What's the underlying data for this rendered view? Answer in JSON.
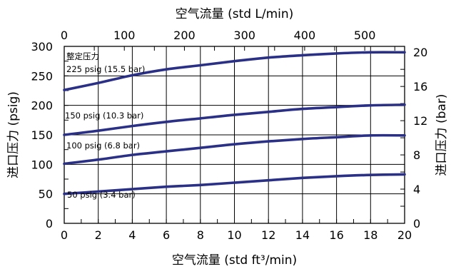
{
  "chart_data": {
    "type": "line",
    "x_bottom": {
      "label": "空气流量 (std ft³/min)",
      "min": 0,
      "max": 20,
      "ticks": [
        0,
        2,
        4,
        6,
        8,
        10,
        12,
        14,
        16,
        18,
        20
      ],
      "minor_step": 1
    },
    "x_top": {
      "label": "空气流量 (std L/min)",
      "min": 0,
      "max": 566.34,
      "ticks": [
        0,
        100,
        200,
        300,
        400,
        500
      ],
      "minor_step": 50
    },
    "y_left": {
      "label": "进口压力 (psig)",
      "min": 0,
      "max": 300,
      "ticks": [
        0,
        50,
        100,
        150,
        200,
        250,
        300
      ],
      "minor_step": 25
    },
    "y_right": {
      "label": "进口压力 (bar)",
      "min": 0,
      "max": 20.684,
      "ticks": [
        0,
        4,
        8,
        12,
        16,
        20
      ],
      "minor_step": 2
    },
    "annotation": "整定压力",
    "grid": true,
    "series_color": "#2b3087",
    "series": [
      {
        "name": "225 psig (15.5 bar)",
        "x": [
          0,
          2,
          4,
          6,
          8,
          10,
          12,
          14,
          16,
          18,
          20
        ],
        "y": [
          226,
          238,
          251,
          261,
          268,
          275,
          281,
          285,
          288,
          290,
          290
        ]
      },
      {
        "name": "150 psig (10.3 bar)",
        "x": [
          0,
          2,
          4,
          6,
          8,
          10,
          12,
          14,
          16,
          18,
          20
        ],
        "y": [
          150,
          157,
          165,
          172,
          178,
          184,
          189,
          194,
          197,
          200,
          201
        ]
      },
      {
        "name": "100 psig (6.8 bar)",
        "x": [
          0,
          2,
          4,
          6,
          8,
          10,
          12,
          14,
          16,
          18,
          20
        ],
        "y": [
          101,
          108,
          116,
          122,
          128,
          134,
          139,
          143,
          146,
          149,
          149
        ]
      },
      {
        "name": "50 psig (3.4 bar)",
        "x": [
          0,
          2,
          4,
          6,
          8,
          10,
          12,
          14,
          16,
          18,
          20
        ],
        "y": [
          50,
          54,
          58,
          62,
          65,
          69,
          73,
          77,
          80,
          82,
          83
        ]
      }
    ]
  }
}
